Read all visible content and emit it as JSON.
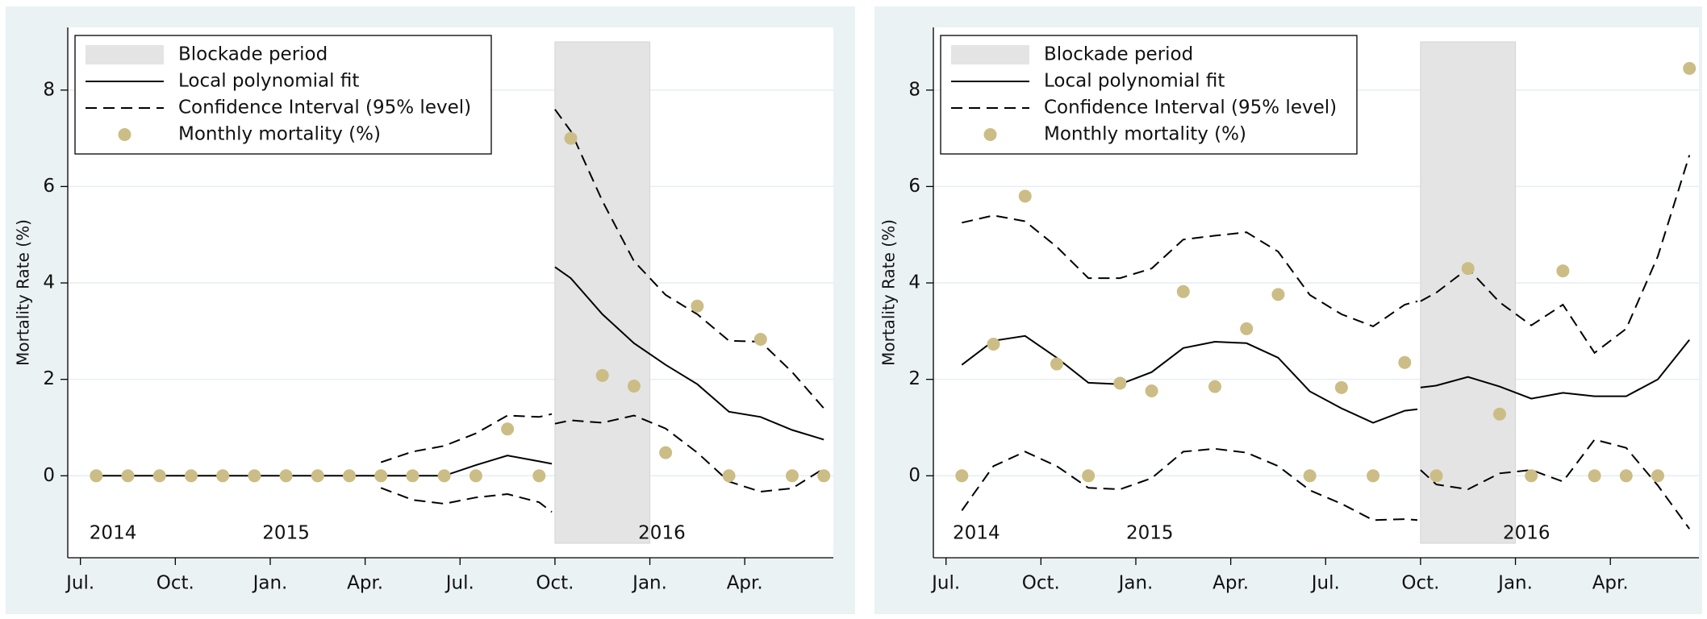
{
  "chart_data": [
    {
      "type": "line",
      "ylabel": "Mortality Rate (%)",
      "xlim": [
        -0.4,
        23.8
      ],
      "ylim": [
        -1.7,
        9.3
      ],
      "yticks": [
        0,
        2,
        4,
        6,
        8
      ],
      "xticks": [
        {
          "value": 0,
          "label": "Jul."
        },
        {
          "value": 3,
          "label": "Oct."
        },
        {
          "value": 6,
          "label": "Jan."
        },
        {
          "value": 9,
          "label": "Apr."
        },
        {
          "value": 12,
          "label": "Jul."
        },
        {
          "value": 15,
          "label": "Oct."
        },
        {
          "value": 18,
          "label": "Jan."
        },
        {
          "value": 21,
          "label": "Apr."
        }
      ],
      "grid": true,
      "shaded_region": {
        "name": "Blockade period",
        "x": [
          15,
          18
        ],
        "y": [
          -1.4,
          9.0
        ],
        "color": "#e4e4e4"
      },
      "annotations": [
        {
          "text": "2014",
          "x": 1.03,
          "y": -1.2
        },
        {
          "text": "2015",
          "x": 6.5,
          "y": -1.2
        },
        {
          "text": "2016",
          "x": 18.38,
          "y": -1.2
        }
      ],
      "x": [
        0.5,
        1.5,
        2.5,
        3.5,
        4.5,
        5.5,
        6.5,
        7.5,
        8.5,
        9.5,
        10.5,
        11.5,
        12.5,
        13.5,
        14.5,
        14.9,
        14.92,
        15.0,
        15.5,
        16.5,
        17.5,
        18.5,
        19.5,
        20.5,
        21.5,
        22.5,
        23.5
      ],
      "series": [
        {
          "name": "Local polynomial fit",
          "color": "#000000",
          "line_style": "solid",
          "values": [
            0,
            0,
            0,
            0,
            0,
            0,
            0,
            0,
            0,
            0,
            0,
            0,
            0.22,
            0.42,
            0.3,
            0.25,
            null,
            4.33,
            4.1,
            3.35,
            2.75,
            2.3,
            1.9,
            1.33,
            1.22,
            0.95,
            0.75
          ]
        },
        {
          "name": "Confidence Interval (95% level)",
          "color": "#000000",
          "line_style": "dashed",
          "values": [
            null,
            null,
            null,
            null,
            null,
            null,
            null,
            null,
            null,
            0.28,
            0.5,
            0.62,
            0.88,
            1.25,
            1.22,
            1.28,
            null,
            7.6,
            7.15,
            5.7,
            4.45,
            3.75,
            3.35,
            2.8,
            2.78,
            2.15,
            1.4
          ],
          "lower": [
            null,
            null,
            null,
            null,
            null,
            null,
            null,
            null,
            null,
            -0.25,
            -0.5,
            -0.58,
            -0.45,
            -0.38,
            -0.55,
            -0.75,
            null,
            1.08,
            1.15,
            1.1,
            1.25,
            0.98,
            0.48,
            -0.12,
            -0.33,
            -0.26,
            0.15
          ]
        },
        {
          "name": "Monthly mortality (%)",
          "color": "#cbbd85",
          "marker": "dot",
          "x": [
            0.5,
            1.5,
            2.5,
            3.5,
            4.5,
            5.5,
            6.5,
            7.5,
            8.5,
            9.5,
            10.5,
            11.5,
            12.5,
            13.5,
            14.5,
            15.5,
            16.5,
            17.5,
            18.5,
            19.5,
            20.5,
            21.5,
            22.5,
            23.5
          ],
          "values": [
            0,
            0,
            0,
            0,
            0,
            0,
            0,
            0,
            0,
            0,
            0,
            0,
            0,
            0.97,
            0,
            7.0,
            2.08,
            1.86,
            0.48,
            3.52,
            0,
            2.83,
            0,
            0
          ]
        }
      ]
    },
    {
      "type": "line",
      "ylabel": "Mortality Rate (%)",
      "xlim": [
        -0.4,
        23.8
      ],
      "ylim": [
        -1.7,
        9.3
      ],
      "yticks": [
        0,
        2,
        4,
        6,
        8
      ],
      "xticks": [
        {
          "value": 0,
          "label": "Jul."
        },
        {
          "value": 3,
          "label": "Oct."
        },
        {
          "value": 6,
          "label": "Jan."
        },
        {
          "value": 9,
          "label": "Apr."
        },
        {
          "value": 12,
          "label": "Jul."
        },
        {
          "value": 15,
          "label": "Oct."
        },
        {
          "value": 18,
          "label": "Jan."
        },
        {
          "value": 21,
          "label": "Apr."
        }
      ],
      "grid": true,
      "shaded_region": {
        "name": "Blockade period",
        "x": [
          15,
          18
        ],
        "y": [
          -1.4,
          9.0
        ],
        "color": "#e4e4e4"
      },
      "annotations": [
        {
          "text": "2014",
          "x": 0.96,
          "y": -1.2
        },
        {
          "text": "2015",
          "x": 6.44,
          "y": -1.2
        },
        {
          "text": "2016",
          "x": 18.35,
          "y": -1.2
        }
      ],
      "x": [
        0.5,
        1.5,
        2.5,
        3.5,
        4.5,
        5.5,
        6.5,
        7.5,
        8.5,
        9.5,
        10.5,
        11.5,
        12.5,
        13.5,
        14.5,
        14.9,
        14.92,
        15.0,
        15.5,
        16.5,
        17.5,
        18.5,
        19.5,
        20.5,
        21.5,
        22.5,
        23.5
      ],
      "series": [
        {
          "name": "Local polynomial fit",
          "color": "#000000",
          "line_style": "solid",
          "values": [
            2.3,
            2.8,
            2.9,
            2.45,
            1.93,
            1.9,
            2.15,
            2.65,
            2.78,
            2.75,
            2.45,
            1.75,
            1.4,
            1.1,
            1.35,
            1.38,
            null,
            1.83,
            1.87,
            2.05,
            1.85,
            1.6,
            1.72,
            1.65,
            1.65,
            2.0,
            2.82
          ]
        },
        {
          "name": "Confidence Interval (95% level)",
          "color": "#000000",
          "line_style": "dashed",
          "values": [
            5.25,
            5.4,
            5.28,
            4.75,
            4.1,
            4.1,
            4.3,
            4.9,
            4.98,
            5.05,
            4.65,
            3.75,
            3.35,
            3.1,
            3.55,
            3.62,
            null,
            3.62,
            3.8,
            4.3,
            3.6,
            3.12,
            3.55,
            2.55,
            3.05,
            4.55,
            6.65
          ],
          "lower": [
            -0.72,
            0.2,
            0.5,
            0.2,
            -0.25,
            -0.28,
            -0.05,
            0.5,
            0.56,
            0.48,
            0.2,
            -0.3,
            -0.58,
            -0.92,
            -0.9,
            -0.92,
            null,
            0.12,
            -0.18,
            -0.28,
            0.05,
            0.12,
            -0.12,
            0.75,
            0.58,
            -0.2,
            -1.1
          ]
        },
        {
          "name": "Monthly mortality (%)",
          "color": "#cbbd85",
          "marker": "dot",
          "x": [
            0.5,
            1.5,
            2.5,
            3.5,
            4.5,
            5.5,
            6.5,
            7.5,
            8.5,
            9.5,
            10.5,
            11.5,
            12.5,
            13.5,
            14.5,
            15.5,
            16.5,
            17.5,
            18.5,
            19.5,
            20.5,
            21.5,
            22.5,
            23.5
          ],
          "values": [
            0,
            2.73,
            5.8,
            2.32,
            0,
            1.92,
            1.76,
            3.82,
            1.85,
            3.05,
            3.76,
            0,
            1.83,
            0,
            2.35,
            0,
            4.3,
            1.28,
            0,
            4.25,
            0,
            0,
            0,
            8.45
          ]
        }
      ]
    }
  ]
}
